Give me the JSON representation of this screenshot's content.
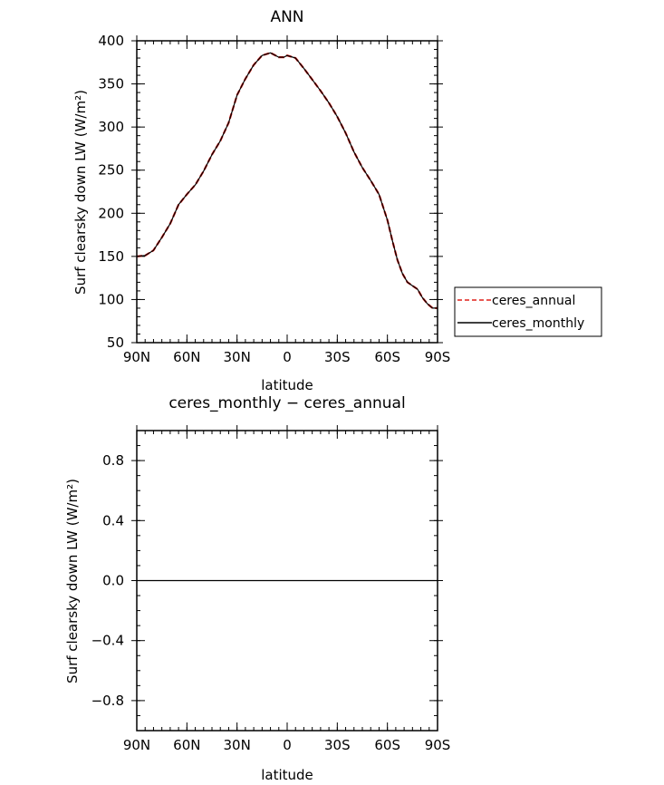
{
  "chart_data": [
    {
      "type": "line",
      "title": "ANN",
      "xlabel": "latitude",
      "ylabel": "Surf clearsky down LW (W/m²)",
      "xlim": [
        90,
        -90
      ],
      "ylim": [
        50,
        400
      ],
      "x_ticks": [
        90,
        60,
        30,
        0,
        -30,
        -60,
        -90
      ],
      "x_tick_labels": [
        "90N",
        "60N",
        "30N",
        "0",
        "30S",
        "60S",
        "90S"
      ],
      "y_ticks": [
        50,
        100,
        150,
        200,
        250,
        300,
        350,
        400
      ],
      "y_tick_labels": [
        "50",
        "100",
        "150",
        "200",
        "250",
        "300",
        "350",
        "400"
      ],
      "grid": false,
      "legend": {
        "placement": "right",
        "entries": [
          "ceres_annual",
          "ceres_monthly"
        ]
      },
      "series": [
        {
          "name": "ceres_annual",
          "color": "#e0201a",
          "style": "dashed",
          "x": [
            90,
            85,
            80,
            75,
            70,
            65,
            60,
            55,
            50,
            45,
            40,
            35,
            30,
            25,
            20,
            15,
            10,
            5,
            2,
            0,
            -5,
            -10,
            -15,
            -20,
            -25,
            -30,
            -35,
            -40,
            -45,
            -50,
            -55,
            -60,
            -63,
            -66,
            -69,
            -72,
            -75,
            -78,
            -81,
            -84,
            -87,
            -90
          ],
          "y": [
            150,
            151,
            157,
            172,
            188,
            210,
            222,
            233,
            249,
            268,
            284,
            305,
            337,
            356,
            372,
            383,
            386,
            381,
            381,
            383,
            380,
            368,
            355,
            342,
            328,
            312,
            293,
            271,
            253,
            238,
            222,
            192,
            168,
            146,
            130,
            120,
            116,
            112,
            102,
            95,
            90,
            90
          ]
        },
        {
          "name": "ceres_monthly",
          "color": "#000000",
          "style": "solid",
          "x": [
            90,
            85,
            80,
            75,
            70,
            65,
            60,
            55,
            50,
            45,
            40,
            35,
            30,
            25,
            20,
            15,
            10,
            5,
            2,
            0,
            -5,
            -10,
            -15,
            -20,
            -25,
            -30,
            -35,
            -40,
            -45,
            -50,
            -55,
            -60,
            -63,
            -66,
            -69,
            -72,
            -75,
            -78,
            -81,
            -84,
            -87,
            -90
          ],
          "y": [
            150,
            151,
            157,
            172,
            188,
            210,
            222,
            233,
            249,
            268,
            284,
            305,
            337,
            356,
            372,
            383,
            386,
            381,
            381,
            383,
            380,
            368,
            355,
            342,
            328,
            312,
            293,
            271,
            253,
            238,
            222,
            192,
            168,
            146,
            130,
            120,
            116,
            112,
            102,
            95,
            90,
            90
          ]
        }
      ]
    },
    {
      "type": "line",
      "title": "ceres_monthly − ceres_annual",
      "xlabel": "latitude",
      "ylabel": "Surf clearsky down LW (W/m²)",
      "xlim": [
        90,
        -90
      ],
      "ylim": [
        -1,
        1
      ],
      "x_ticks": [
        90,
        60,
        30,
        0,
        -30,
        -60,
        -90
      ],
      "x_tick_labels": [
        "90N",
        "60N",
        "30N",
        "0",
        "30S",
        "60S",
        "90S"
      ],
      "y_ticks": [
        -0.8,
        -0.4,
        0.0,
        0.4,
        0.8
      ],
      "y_tick_labels": [
        "−0.8",
        "−0.4",
        "0.0",
        "0.4",
        "0.8"
      ],
      "grid": false,
      "series": [
        {
          "color": "#000000",
          "style": "solid",
          "x": [
            90,
            -90
          ],
          "y": [
            0,
            0
          ]
        }
      ]
    }
  ]
}
